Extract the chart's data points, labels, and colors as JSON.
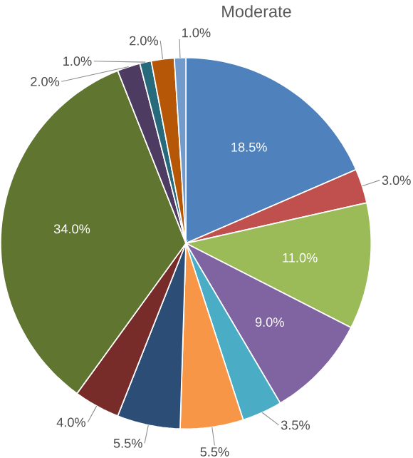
{
  "chart_data": {
    "type": "pie",
    "title": "Moderate",
    "categories": [
      null,
      null,
      null,
      null,
      null,
      null,
      null,
      null,
      null,
      null,
      null,
      null,
      null
    ],
    "values": [
      18.5,
      3.0,
      11.0,
      9.0,
      3.5,
      5.5,
      5.5,
      4.0,
      34.0,
      2.0,
      1.0,
      2.0,
      1.0
    ],
    "colors": [
      "#4f81bd",
      "#c0504d",
      "#9bbb59",
      "#8064a2",
      "#4bacc6",
      "#f79646",
      "#2c4d75",
      "#772c2a",
      "#5f7530",
      "#4d3b62",
      "#276a7c",
      "#b65708",
      "#729aca"
    ],
    "value_labels": [
      "18.5%",
      "3.0%",
      "11.0%",
      "9.0%",
      "3.5%",
      "5.5%",
      "5.5%",
      "4.0%",
      "34.0%",
      "2.0%",
      "1.0%",
      "2.0%",
      "1.0%"
    ]
  }
}
